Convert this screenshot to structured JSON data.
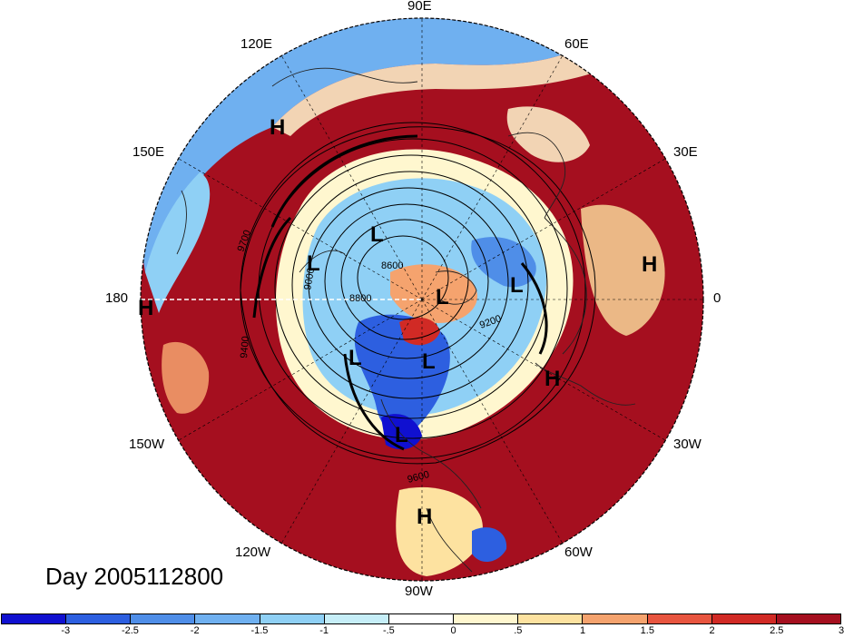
{
  "map": {
    "longitude_labels": [
      "90E",
      "60E",
      "30E",
      "0",
      "30W",
      "60W",
      "90W",
      "120W",
      "150W",
      "180",
      "150E",
      "120E"
    ],
    "pressure_systems": [
      {
        "type": "H",
        "lon": 120
      },
      {
        "type": "H",
        "lon": 180
      },
      {
        "type": "H",
        "lon": 0
      },
      {
        "type": "H",
        "lon": -20
      },
      {
        "type": "H",
        "lon": -90
      },
      {
        "type": "L",
        "lon": 120
      },
      {
        "type": "L",
        "lon": 160
      },
      {
        "type": "L",
        "lon": 20
      },
      {
        "type": "L",
        "lon": 70
      },
      {
        "type": "L",
        "lon": -130
      },
      {
        "type": "L",
        "lon": -90
      },
      {
        "type": "L",
        "lon": -110
      }
    ],
    "contour_labels": [
      "8600",
      "8800",
      "9000",
      "9200",
      "9400",
      "9600",
      "9700"
    ],
    "colors": {
      "deep_red": "#a50f1f",
      "red": "#d7301f",
      "cream": "#fff7cf",
      "light_blue": "#b3e5f5",
      "blue": "#4f8ee8",
      "deep_blue": "#1f1fd8",
      "coast": "#222222"
    }
  },
  "day_label": "Day 2005112800",
  "colorbar": {
    "ticks": [
      "-3",
      "-2.5",
      "-2",
      "-1.5",
      "-1",
      "-.5",
      "0",
      ".5",
      "1",
      "1.5",
      "2",
      "2.5",
      "3"
    ],
    "colors": [
      "#1010d0",
      "#2d5fe0",
      "#4f8ee8",
      "#6fb0f0",
      "#8fd0f5",
      "#c6eef8",
      "#ffffff",
      "#fff7cf",
      "#fde2a0",
      "#f5a36e",
      "#e8553f",
      "#d12a25",
      "#a50f1f"
    ]
  }
}
